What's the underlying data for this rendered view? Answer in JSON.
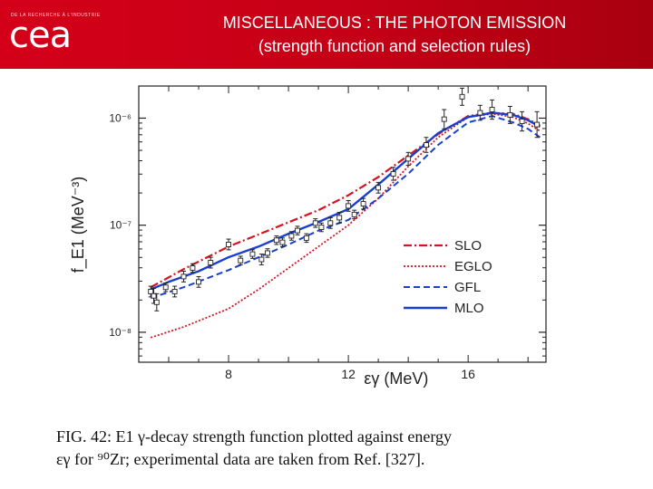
{
  "header": {
    "logo_text": "cea",
    "logo_small": "DE LA RECHERCHE À L'INDUSTRIE",
    "title_line1": "MISCELLANEOUS : THE PHOTON EMISSION",
    "title_line2": "(strength function and selection rules)"
  },
  "caption": {
    "line1": "FIG. 42: E1 γ-decay strength function plotted against energy",
    "line2": "εγ for ⁹⁰Zr; experimental data are taken from Ref. [327]."
  },
  "chart_data": {
    "type": "line",
    "ylabel": "f_E1 (MeV⁻³)",
    "xlabel": "εγ (MeV)",
    "xlim": [
      5.0,
      18.6
    ],
    "ylim_log10": [
      -8.28,
      -5.7
    ],
    "yscale": "log",
    "x_ticks": [
      8,
      12,
      16
    ],
    "x_tick_labels": [
      "8",
      "12",
      "16"
    ],
    "y_ticks_log10": [
      -8,
      -7,
      -6
    ],
    "y_tick_labels": [
      "10⁻⁸",
      "10⁻⁷",
      "10⁻⁶"
    ],
    "legend_position": "lower-right",
    "series": [
      {
        "name": "SLO",
        "color": "#d4141e",
        "dash": "9,3,2,3",
        "width": 2.2,
        "x": [
          5.4,
          6.5,
          8.0,
          9.5,
          11.0,
          12.0,
          13.0,
          14.0,
          15.0,
          16.0,
          16.8,
          17.5,
          18.0,
          18.4
        ],
        "y_log10": [
          -7.58,
          -7.41,
          -7.2,
          -7.03,
          -6.86,
          -6.72,
          -6.55,
          -6.35,
          -6.15,
          -5.98,
          -5.95,
          -5.96,
          -6.01,
          -6.07
        ]
      },
      {
        "name": "EGLO",
        "color": "#d4141e",
        "dash": "2,2",
        "width": 1.8,
        "x": [
          5.4,
          6.5,
          8.0,
          9.0,
          10.0,
          11.0,
          12.0,
          13.0,
          14.0,
          15.0,
          16.0,
          16.8,
          17.5,
          18.0,
          18.4
        ],
        "y_log10": [
          -8.05,
          -7.95,
          -7.78,
          -7.6,
          -7.4,
          -7.2,
          -7.0,
          -6.75,
          -6.45,
          -6.18,
          -5.99,
          -5.96,
          -5.99,
          -6.05,
          -6.12
        ]
      },
      {
        "name": "GFL",
        "color": "#1a3fd0",
        "dash": "7,4",
        "width": 2.0,
        "x": [
          5.4,
          6.5,
          8.0,
          9.0,
          10.0,
          11.0,
          12.0,
          13.0,
          14.0,
          15.0,
          16.0,
          16.8,
          17.5,
          18.0,
          18.4
        ],
        "y_log10": [
          -7.68,
          -7.58,
          -7.42,
          -7.3,
          -7.18,
          -7.05,
          -6.95,
          -6.75,
          -6.52,
          -6.25,
          -6.04,
          -5.98,
          -6.04,
          -6.1,
          -6.18
        ]
      },
      {
        "name": "MLO",
        "color": "#1a3fd0",
        "dash": "",
        "width": 2.4,
        "x": [
          5.4,
          6.0,
          7.0,
          8.0,
          9.0,
          10.0,
          11.0,
          12.0,
          13.0,
          14.0,
          15.0,
          16.0,
          16.8,
          17.5,
          18.0,
          18.4
        ],
        "y_log10": [
          -7.6,
          -7.53,
          -7.43,
          -7.3,
          -7.2,
          -7.08,
          -6.97,
          -6.85,
          -6.62,
          -6.38,
          -6.14,
          -5.99,
          -5.95,
          -5.97,
          -6.02,
          -6.08
        ]
      }
    ],
    "data_points": [
      {
        "x": 5.4,
        "y_log10": -7.62,
        "err": 0.05
      },
      {
        "x": 5.5,
        "y_log10": -7.66,
        "err": 0.07
      },
      {
        "x": 5.6,
        "y_log10": -7.72,
        "err": 0.08
      },
      {
        "x": 5.9,
        "y_log10": -7.58,
        "err": 0.04
      },
      {
        "x": 6.2,
        "y_log10": -7.62,
        "err": 0.05
      },
      {
        "x": 6.5,
        "y_log10": -7.48,
        "err": 0.05
      },
      {
        "x": 6.8,
        "y_log10": -7.4,
        "err": 0.04
      },
      {
        "x": 7.0,
        "y_log10": -7.53,
        "err": 0.05
      },
      {
        "x": 7.4,
        "y_log10": -7.35,
        "err": 0.05
      },
      {
        "x": 8.0,
        "y_log10": -7.18,
        "err": 0.05
      },
      {
        "x": 8.4,
        "y_log10": -7.33,
        "err": 0.04
      },
      {
        "x": 8.8,
        "y_log10": -7.27,
        "err": 0.04
      },
      {
        "x": 9.1,
        "y_log10": -7.32,
        "err": 0.05
      },
      {
        "x": 9.3,
        "y_log10": -7.26,
        "err": 0.04
      },
      {
        "x": 9.6,
        "y_log10": -7.14,
        "err": 0.04
      },
      {
        "x": 9.8,
        "y_log10": -7.16,
        "err": 0.04
      },
      {
        "x": 10.1,
        "y_log10": -7.1,
        "err": 0.04
      },
      {
        "x": 10.3,
        "y_log10": -7.05,
        "err": 0.04
      },
      {
        "x": 10.6,
        "y_log10": -7.12,
        "err": 0.04
      },
      {
        "x": 10.9,
        "y_log10": -6.98,
        "err": 0.04
      },
      {
        "x": 11.1,
        "y_log10": -7.02,
        "err": 0.04
      },
      {
        "x": 11.4,
        "y_log10": -6.98,
        "err": 0.05
      },
      {
        "x": 11.7,
        "y_log10": -6.93,
        "err": 0.05
      },
      {
        "x": 12.0,
        "y_log10": -6.82,
        "err": 0.05
      },
      {
        "x": 12.2,
        "y_log10": -6.9,
        "err": 0.04
      },
      {
        "x": 12.5,
        "y_log10": -6.8,
        "err": 0.05
      },
      {
        "x": 13.0,
        "y_log10": -6.65,
        "err": 0.05
      },
      {
        "x": 13.5,
        "y_log10": -6.52,
        "err": 0.06
      },
      {
        "x": 14.0,
        "y_log10": -6.38,
        "err": 0.06
      },
      {
        "x": 14.6,
        "y_log10": -6.25,
        "err": 0.07
      },
      {
        "x": 15.2,
        "y_log10": -6.01,
        "err": 0.09
      },
      {
        "x": 15.8,
        "y_log10": -5.8,
        "err": 0.08
      },
      {
        "x": 16.4,
        "y_log10": -5.95,
        "err": 0.07
      },
      {
        "x": 16.8,
        "y_log10": -5.92,
        "err": 0.09
      },
      {
        "x": 17.4,
        "y_log10": -5.97,
        "err": 0.08
      },
      {
        "x": 17.8,
        "y_log10": -6.03,
        "err": 0.09
      },
      {
        "x": 18.3,
        "y_log10": -6.06,
        "err": 0.12
      }
    ]
  }
}
